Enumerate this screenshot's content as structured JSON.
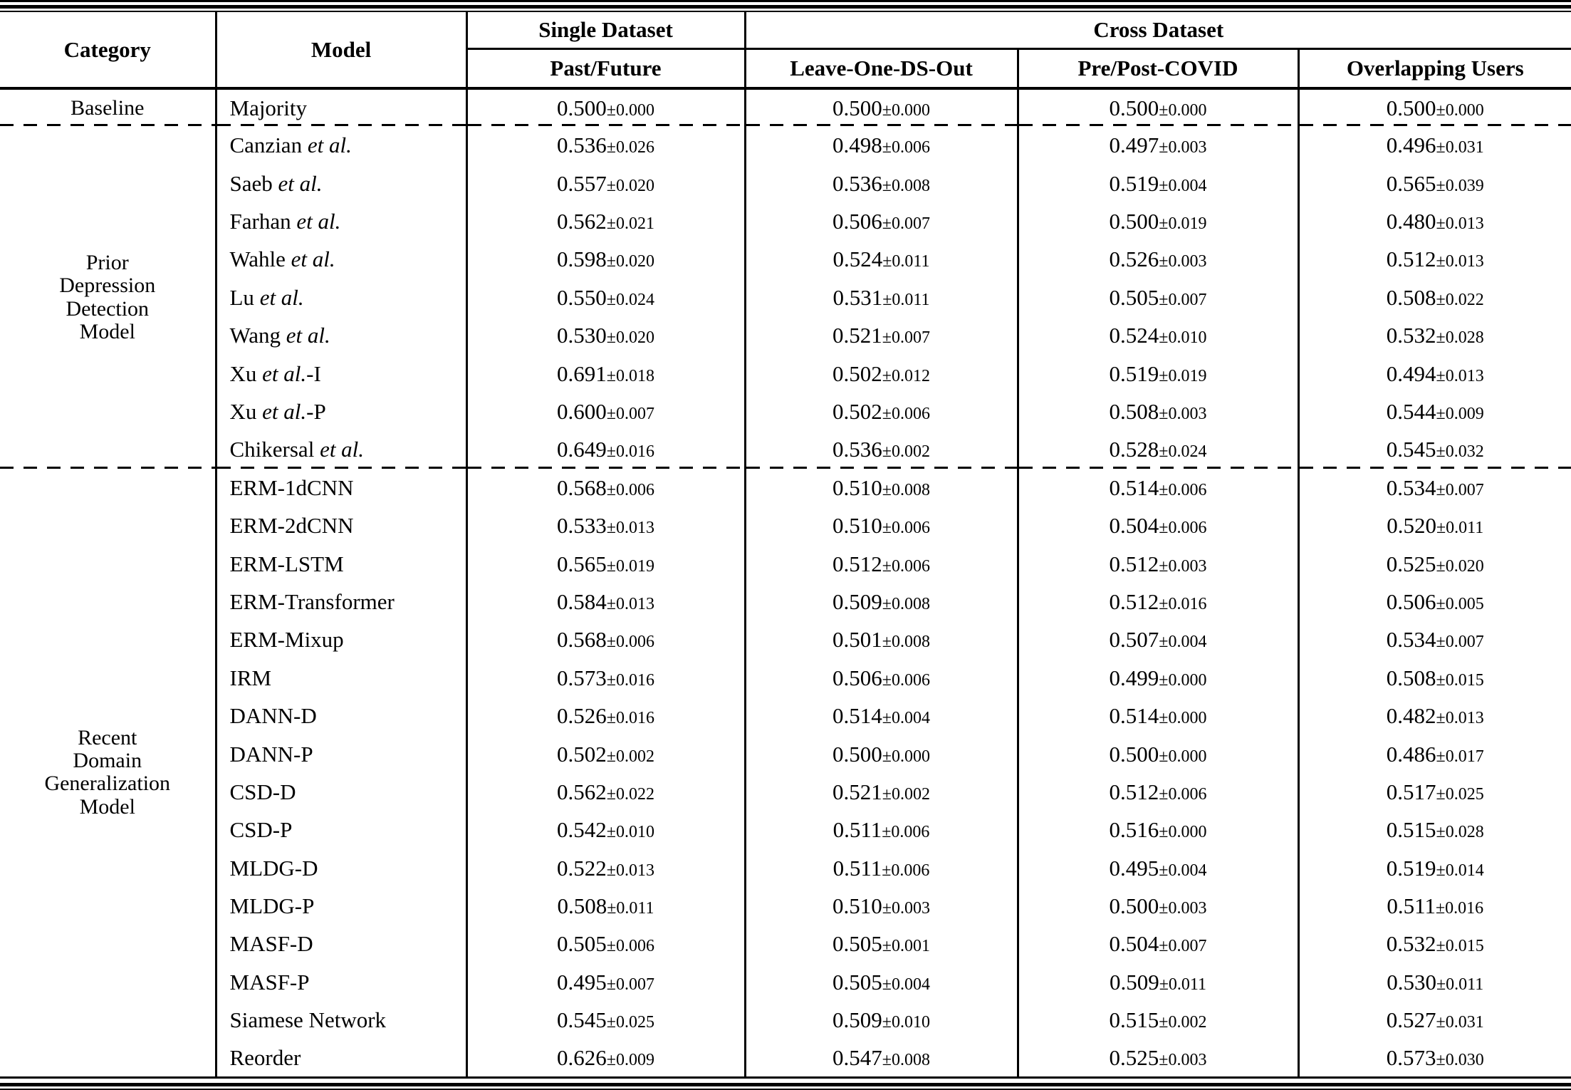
{
  "table": {
    "header": {
      "category": "Category",
      "model": "Model",
      "single_dataset": "Single Dataset",
      "cross_dataset": "Cross Dataset",
      "sub_columns": [
        "Past/Future",
        "Leave-One-DS-Out",
        "Pre/Post-COVID",
        "Overlapping Users"
      ]
    },
    "sections": [
      {
        "category": "Baseline",
        "dashed_after": true,
        "rows": [
          {
            "model": {
              "pre": "Majority",
              "it": "",
              "post": ""
            },
            "values": [
              "0.500±0.000",
              "0.500±0.000",
              "0.500±0.000",
              "0.500±0.000"
            ]
          }
        ]
      },
      {
        "category": "Prior\nDepression\nDetection\nModel",
        "dashed_after": true,
        "rows": [
          {
            "model": {
              "pre": "Canzian ",
              "it": "et al.",
              "post": ""
            },
            "values": [
              "0.536±0.026",
              "0.498±0.006",
              "0.497±0.003",
              "0.496±0.031"
            ]
          },
          {
            "model": {
              "pre": "Saeb ",
              "it": "et al.",
              "post": ""
            },
            "values": [
              "0.557±0.020",
              "0.536±0.008",
              "0.519±0.004",
              "0.565±0.039"
            ]
          },
          {
            "model": {
              "pre": "Farhan ",
              "it": "et al.",
              "post": ""
            },
            "values": [
              "0.562±0.021",
              "0.506±0.007",
              "0.500±0.019",
              "0.480±0.013"
            ]
          },
          {
            "model": {
              "pre": "Wahle ",
              "it": "et al.",
              "post": ""
            },
            "values": [
              "0.598±0.020",
              "0.524±0.011",
              "0.526±0.003",
              "0.512±0.013"
            ]
          },
          {
            "model": {
              "pre": "Lu ",
              "it": "et al.",
              "post": ""
            },
            "values": [
              "0.550±0.024",
              "0.531±0.011",
              "0.505±0.007",
              "0.508±0.022"
            ]
          },
          {
            "model": {
              "pre": "Wang ",
              "it": "et al.",
              "post": ""
            },
            "values": [
              "0.530±0.020",
              "0.521±0.007",
              "0.524±0.010",
              "0.532±0.028"
            ]
          },
          {
            "model": {
              "pre": "Xu ",
              "it": "et al.",
              "post": "-I"
            },
            "values": [
              "0.691±0.018",
              "0.502±0.012",
              "0.519±0.019",
              "0.494±0.013"
            ]
          },
          {
            "model": {
              "pre": "Xu ",
              "it": "et al.",
              "post": "-P"
            },
            "values": [
              "0.600±0.007",
              "0.502±0.006",
              "0.508±0.003",
              "0.544±0.009"
            ]
          },
          {
            "model": {
              "pre": "Chikersal ",
              "it": "et al.",
              "post": ""
            },
            "values": [
              "0.649±0.016",
              "0.536±0.002",
              "0.528±0.024",
              "0.545±0.032"
            ]
          }
        ]
      },
      {
        "category": "Recent\nDomain\nGeneralization\nModel",
        "dashed_after": false,
        "rows": [
          {
            "model": {
              "pre": "ERM-1dCNN",
              "it": "",
              "post": ""
            },
            "values": [
              "0.568±0.006",
              "0.510±0.008",
              "0.514±0.006",
              "0.534±0.007"
            ]
          },
          {
            "model": {
              "pre": "ERM-2dCNN",
              "it": "",
              "post": ""
            },
            "values": [
              "0.533±0.013",
              "0.510±0.006",
              "0.504±0.006",
              "0.520±0.011"
            ]
          },
          {
            "model": {
              "pre": "ERM-LSTM",
              "it": "",
              "post": ""
            },
            "values": [
              "0.565±0.019",
              "0.512±0.006",
              "0.512±0.003",
              "0.525±0.020"
            ]
          },
          {
            "model": {
              "pre": "ERM-Transformer",
              "it": "",
              "post": ""
            },
            "values": [
              "0.584±0.013",
              "0.509±0.008",
              "0.512±0.016",
              "0.506±0.005"
            ]
          },
          {
            "model": {
              "pre": "ERM-Mixup",
              "it": "",
              "post": ""
            },
            "values": [
              "0.568±0.006",
              "0.501±0.008",
              "0.507±0.004",
              "0.534±0.007"
            ]
          },
          {
            "model": {
              "pre": "IRM",
              "it": "",
              "post": ""
            },
            "values": [
              "0.573±0.016",
              "0.506±0.006",
              "0.499±0.000",
              "0.508±0.015"
            ]
          },
          {
            "model": {
              "pre": "DANN-D",
              "it": "",
              "post": ""
            },
            "values": [
              "0.526±0.016",
              "0.514±0.004",
              "0.514±0.000",
              "0.482±0.013"
            ]
          },
          {
            "model": {
              "pre": "DANN-P",
              "it": "",
              "post": ""
            },
            "values": [
              "0.502±0.002",
              "0.500±0.000",
              "0.500±0.000",
              "0.486±0.017"
            ]
          },
          {
            "model": {
              "pre": "CSD-D",
              "it": "",
              "post": ""
            },
            "values": [
              "0.562±0.022",
              "0.521±0.002",
              "0.512±0.006",
              "0.517±0.025"
            ]
          },
          {
            "model": {
              "pre": "CSD-P",
              "it": "",
              "post": ""
            },
            "values": [
              "0.542±0.010",
              "0.511±0.006",
              "0.516±0.000",
              "0.515±0.028"
            ]
          },
          {
            "model": {
              "pre": "MLDG-D",
              "it": "",
              "post": ""
            },
            "values": [
              "0.522±0.013",
              "0.511±0.006",
              "0.495±0.004",
              "0.519±0.014"
            ]
          },
          {
            "model": {
              "pre": "MLDG-P",
              "it": "",
              "post": ""
            },
            "values": [
              "0.508±0.011",
              "0.510±0.003",
              "0.500±0.003",
              "0.511±0.016"
            ]
          },
          {
            "model": {
              "pre": "MASF-D",
              "it": "",
              "post": ""
            },
            "values": [
              "0.505±0.006",
              "0.505±0.001",
              "0.504±0.007",
              "0.532±0.015"
            ]
          },
          {
            "model": {
              "pre": "MASF-P",
              "it": "",
              "post": ""
            },
            "values": [
              "0.495±0.007",
              "0.505±0.004",
              "0.509±0.011",
              "0.530±0.011"
            ]
          },
          {
            "model": {
              "pre": "Siamese Network",
              "it": "",
              "post": ""
            },
            "values": [
              "0.545±0.025",
              "0.509±0.010",
              "0.515±0.002",
              "0.527±0.031"
            ]
          },
          {
            "model": {
              "pre": "Reorder",
              "it": "",
              "post": ""
            },
            "values": [
              "0.626±0.009",
              "0.547±0.008",
              "0.525±0.003",
              "0.573±0.030"
            ]
          }
        ]
      }
    ]
  }
}
